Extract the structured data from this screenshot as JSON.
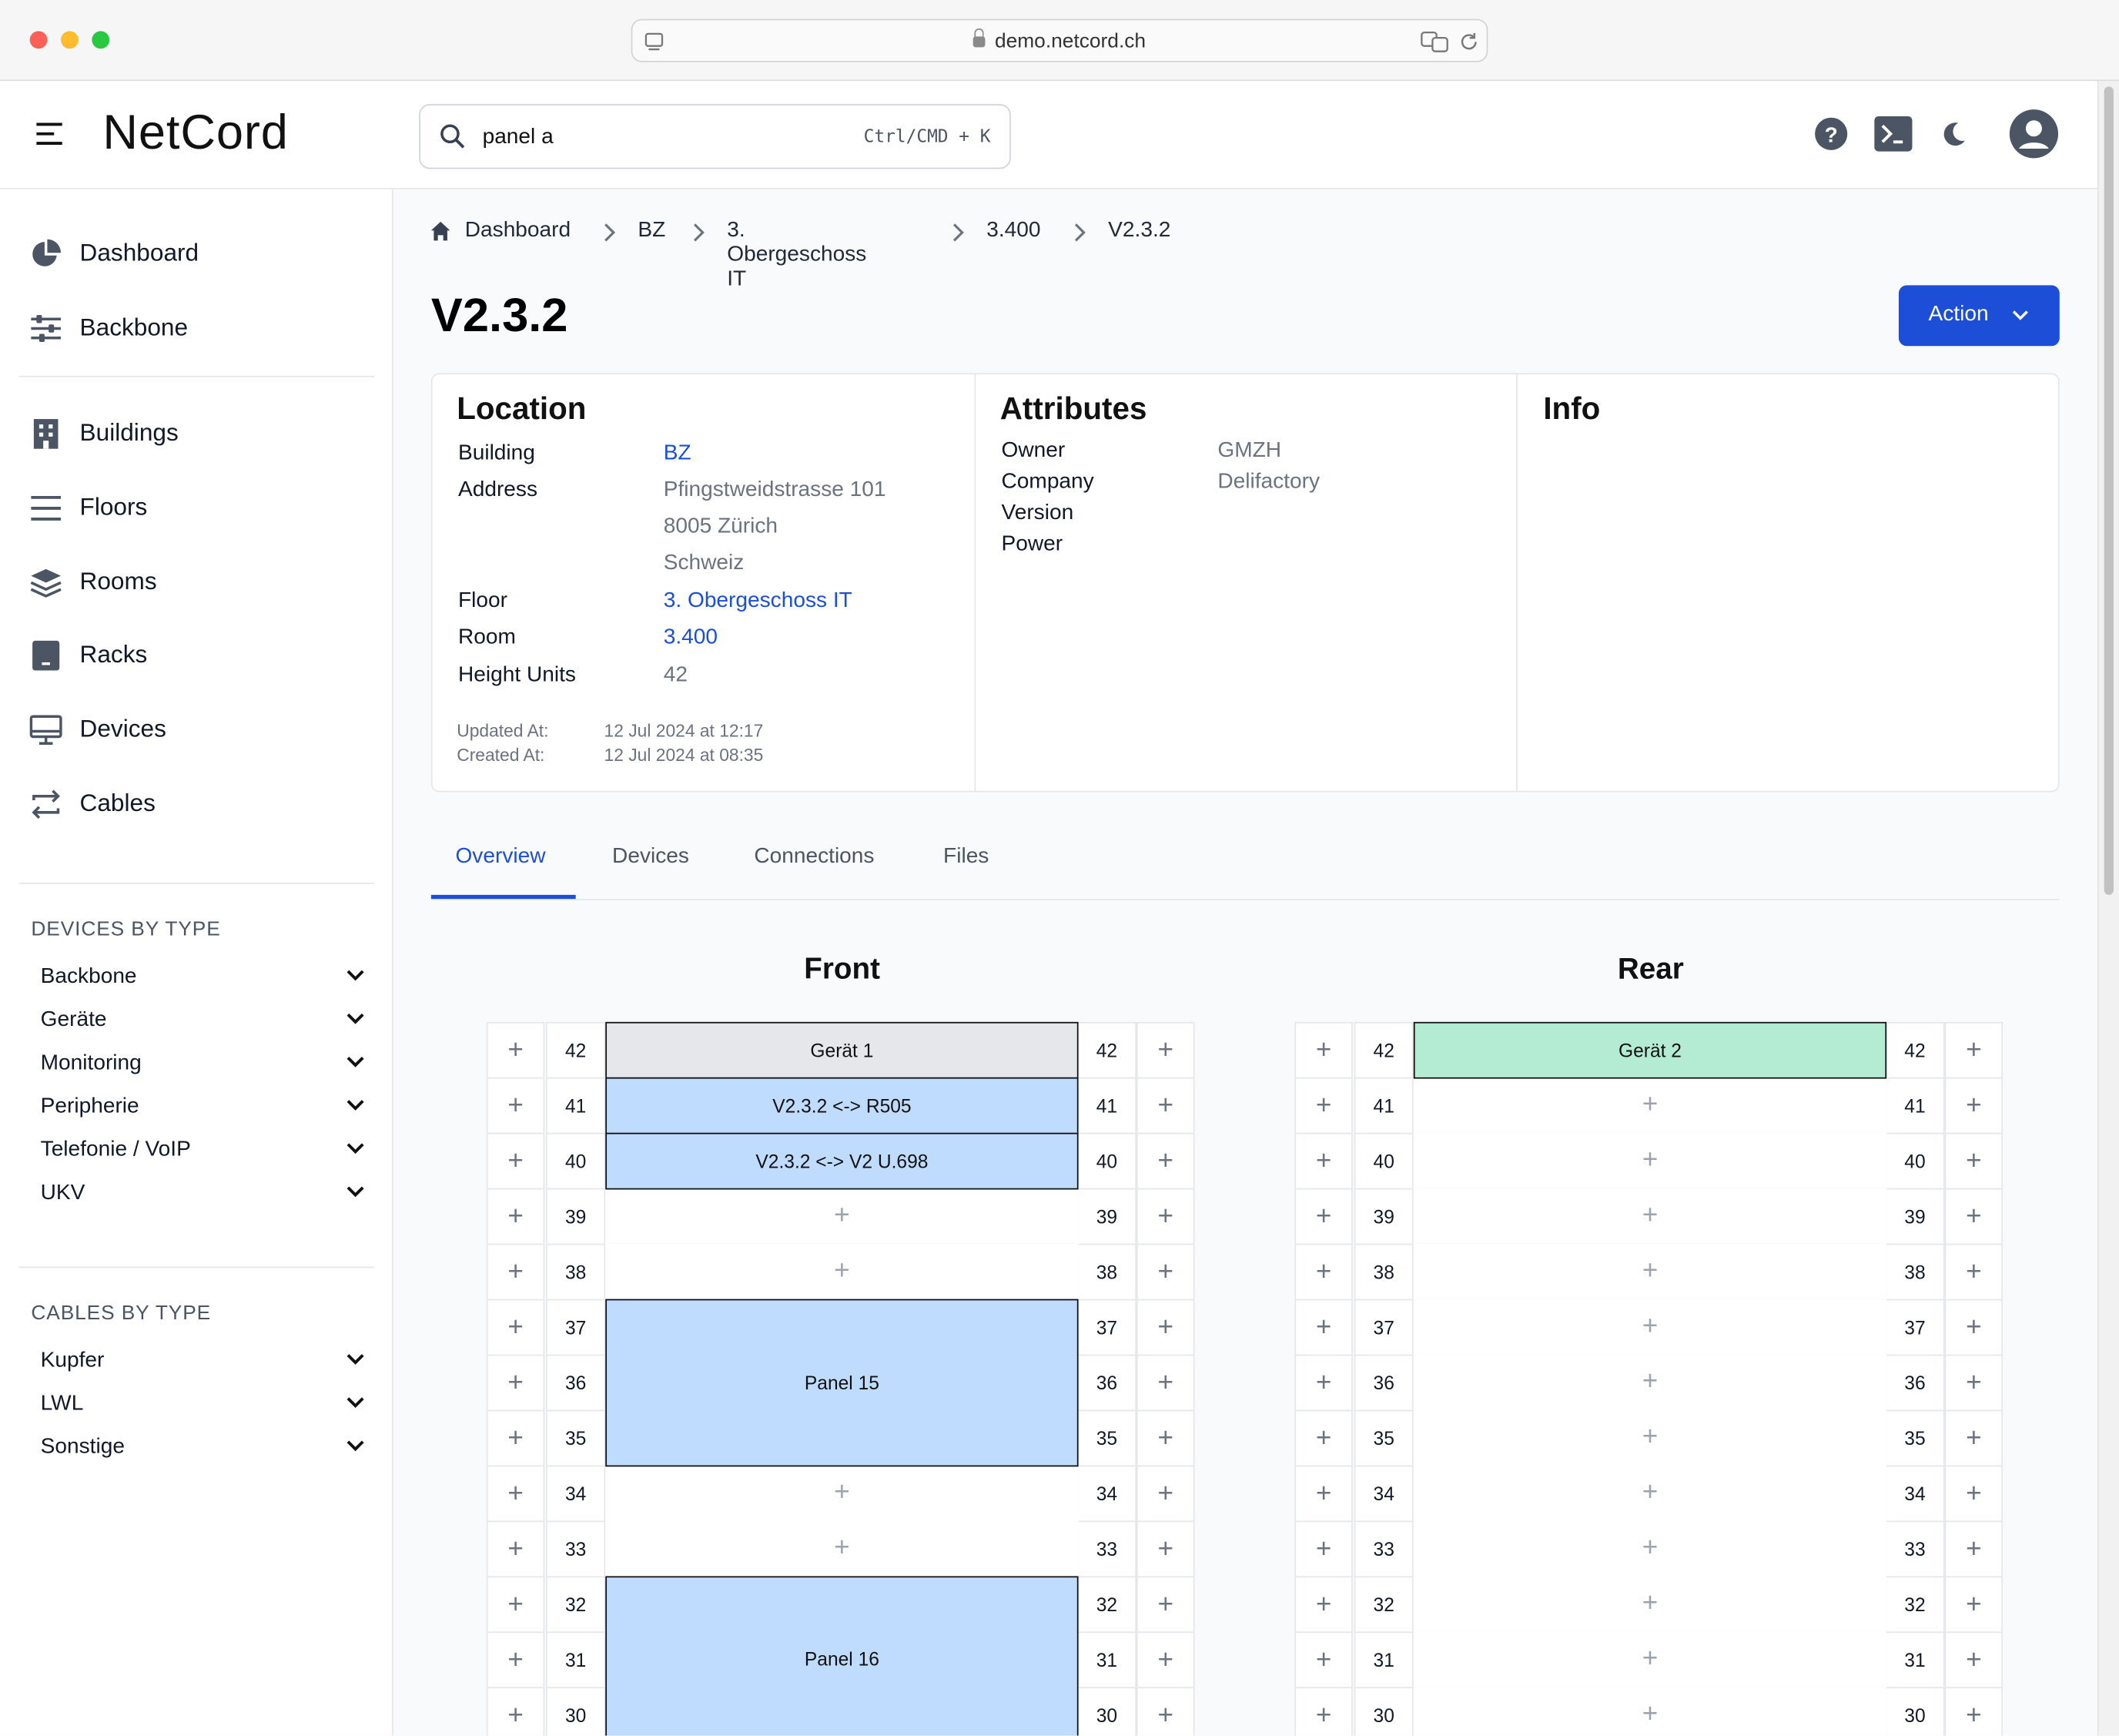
{
  "browser": {
    "url": "demo.netcord.ch"
  },
  "app": {
    "logo": "NetCord"
  },
  "search": {
    "value": "panel a",
    "shortcut": "Ctrl/CMD + K"
  },
  "sidebar": {
    "top_items": [
      {
        "label": "Dashboard",
        "icon": "pie-chart-icon"
      },
      {
        "label": "Backbone",
        "icon": "sliders-icon"
      }
    ],
    "items": [
      {
        "label": "Buildings",
        "icon": "building-icon"
      },
      {
        "label": "Floors",
        "icon": "bars-icon"
      },
      {
        "label": "Rooms",
        "icon": "layers-icon"
      },
      {
        "label": "Racks",
        "icon": "rack-icon"
      },
      {
        "label": "Devices",
        "icon": "monitor-icon"
      },
      {
        "label": "Cables",
        "icon": "arrows-exchange-icon"
      }
    ],
    "devices_section_title": "DEVICES BY TYPE",
    "devices_by_type": [
      "Backbone",
      "Geräte",
      "Monitoring",
      "Peripherie",
      "Telefonie / VoIP",
      "UKV"
    ],
    "cables_section_title": "CABLES BY TYPE",
    "cables_by_type": [
      "Kupfer",
      "LWL",
      "Sonstige"
    ]
  },
  "breadcrumb": [
    "Dashboard",
    "BZ",
    "3. Obergeschoss IT",
    "3.400",
    "V2.3.2"
  ],
  "page": {
    "title": "V2.3.2",
    "action_label": "Action"
  },
  "location": {
    "title": "Location",
    "building_label": "Building",
    "building": "BZ",
    "address_label": "Address",
    "address_line1": "Pfingstweidstrasse 101",
    "address_line2": "8005 Zürich",
    "address_line3": "Schweiz",
    "floor_label": "Floor",
    "floor": "3. Obergeschoss IT",
    "room_label": "Room",
    "room": "3.400",
    "height_label": "Height Units",
    "height": "42",
    "updated_label": "Updated At:",
    "updated": "12 Jul 2024 at 12:17",
    "created_label": "Created At:",
    "created": "12 Jul 2024 at 08:35"
  },
  "attributes": {
    "title": "Attributes",
    "owner_label": "Owner",
    "owner": "GMZH",
    "company_label": "Company",
    "company": "Delifactory",
    "version_label": "Version",
    "power_label": "Power"
  },
  "info": {
    "title": "Info"
  },
  "tabs": [
    "Overview",
    "Devices",
    "Connections",
    "Files"
  ],
  "rack": {
    "front_title": "Front",
    "rear_title": "Rear",
    "units": [
      42,
      41,
      40,
      39,
      38,
      37,
      36,
      35,
      34,
      33,
      32,
      31,
      30
    ],
    "front_devices": [
      {
        "label": "Gerät 1",
        "top_unit": 42,
        "height_units": 1,
        "color": "#e5e7eb"
      },
      {
        "label": "V2.3.2 <-> R505",
        "top_unit": 41,
        "height_units": 1,
        "color": "#bfdbfe"
      },
      {
        "label": "V2.3.2 <-> V2 U.698",
        "top_unit": 40,
        "height_units": 1,
        "color": "#bfdbfe"
      },
      {
        "label": "Panel 15",
        "top_unit": 37,
        "height_units": 3,
        "color": "#bfdbfe"
      },
      {
        "label": "Panel 16",
        "top_unit": 32,
        "height_units": 3,
        "color": "#bfdbfe"
      }
    ],
    "rear_devices": [
      {
        "label": "Gerät 2",
        "top_unit": 42,
        "height_units": 1,
        "color": "#b4ecd3"
      }
    ],
    "add_glyph": "+"
  }
}
